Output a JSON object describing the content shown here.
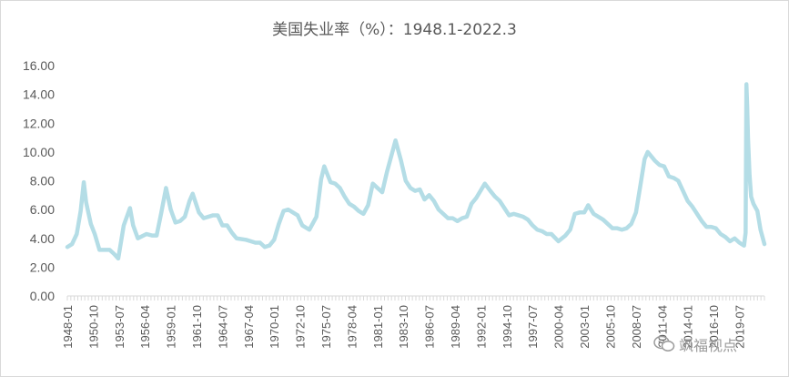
{
  "chart_data": {
    "type": "line",
    "title": "美国失业率（%）：1948.1-2022.3",
    "xlabel": "",
    "ylabel": "",
    "ylim": [
      0,
      16
    ],
    "yticks": [
      "0.00",
      "2.00",
      "4.00",
      "6.00",
      "8.00",
      "10.00",
      "12.00",
      "14.00",
      "16.00"
    ],
    "xticks": [
      "1948-01",
      "1950-10",
      "1953-07",
      "1956-04",
      "1959-01",
      "1961-10",
      "1964-07",
      "1967-04",
      "1970-01",
      "1972-10",
      "1975-07",
      "1978-04",
      "1981-01",
      "1983-10",
      "1986-07",
      "1989-04",
      "1992-01",
      "1994-10",
      "1997-07",
      "2000-04",
      "2003-01",
      "2005-10",
      "2008-07",
      "2011-04",
      "2014-01",
      "2016-10",
      "2019-07"
    ],
    "grid": false,
    "legend": "none",
    "line_color": "#b4dde6",
    "x_range": [
      "1948-01",
      "2022-03"
    ],
    "series": [
      {
        "points": [
          [
            "1948-01",
            3.4
          ],
          [
            "1948-07",
            3.6
          ],
          [
            "1949-01",
            4.3
          ],
          [
            "1949-06",
            5.9
          ],
          [
            "1949-10",
            7.9
          ],
          [
            "1950-01",
            6.5
          ],
          [
            "1950-07",
            5.0
          ],
          [
            "1950-12",
            4.3
          ],
          [
            "1951-06",
            3.2
          ],
          [
            "1952-01",
            3.2
          ],
          [
            "1952-07",
            3.2
          ],
          [
            "1953-01",
            2.9
          ],
          [
            "1953-06",
            2.6
          ],
          [
            "1954-01",
            4.9
          ],
          [
            "1954-09",
            6.1
          ],
          [
            "1955-01",
            4.9
          ],
          [
            "1955-07",
            4.0
          ],
          [
            "1956-06",
            4.3
          ],
          [
            "1957-01",
            4.2
          ],
          [
            "1957-07",
            4.2
          ],
          [
            "1958-01",
            5.8
          ],
          [
            "1958-07",
            7.5
          ],
          [
            "1959-01",
            6.0
          ],
          [
            "1959-07",
            5.1
          ],
          [
            "1960-01",
            5.2
          ],
          [
            "1960-07",
            5.5
          ],
          [
            "1961-01",
            6.6
          ],
          [
            "1961-05",
            7.1
          ],
          [
            "1962-01",
            5.8
          ],
          [
            "1962-07",
            5.4
          ],
          [
            "1963-07",
            5.6
          ],
          [
            "1964-01",
            5.6
          ],
          [
            "1964-07",
            4.9
          ],
          [
            "1965-01",
            4.9
          ],
          [
            "1965-07",
            4.4
          ],
          [
            "1966-01",
            4.0
          ],
          [
            "1967-01",
            3.9
          ],
          [
            "1967-07",
            3.8
          ],
          [
            "1968-01",
            3.7
          ],
          [
            "1968-07",
            3.7
          ],
          [
            "1969-01",
            3.4
          ],
          [
            "1969-07",
            3.5
          ],
          [
            "1970-01",
            3.9
          ],
          [
            "1970-07",
            5.0
          ],
          [
            "1971-01",
            5.9
          ],
          [
            "1971-07",
            6.0
          ],
          [
            "1972-01",
            5.8
          ],
          [
            "1972-07",
            5.6
          ],
          [
            "1973-01",
            4.9
          ],
          [
            "1973-10",
            4.6
          ],
          [
            "1974-07",
            5.5
          ],
          [
            "1975-01",
            8.1
          ],
          [
            "1975-05",
            9.0
          ],
          [
            "1976-01",
            7.9
          ],
          [
            "1976-07",
            7.8
          ],
          [
            "1977-01",
            7.5
          ],
          [
            "1977-07",
            6.9
          ],
          [
            "1978-01",
            6.4
          ],
          [
            "1978-07",
            6.2
          ],
          [
            "1979-01",
            5.9
          ],
          [
            "1979-07",
            5.7
          ],
          [
            "1980-01",
            6.3
          ],
          [
            "1980-07",
            7.8
          ],
          [
            "1981-01",
            7.5
          ],
          [
            "1981-07",
            7.2
          ],
          [
            "1982-01",
            8.6
          ],
          [
            "1982-07",
            9.8
          ],
          [
            "1982-12",
            10.8
          ],
          [
            "1983-07",
            9.4
          ],
          [
            "1984-01",
            8.0
          ],
          [
            "1984-07",
            7.5
          ],
          [
            "1985-01",
            7.3
          ],
          [
            "1985-07",
            7.4
          ],
          [
            "1986-01",
            6.7
          ],
          [
            "1986-07",
            7.0
          ],
          [
            "1987-01",
            6.6
          ],
          [
            "1987-07",
            6.0
          ],
          [
            "1988-01",
            5.7
          ],
          [
            "1988-07",
            5.4
          ],
          [
            "1989-01",
            5.4
          ],
          [
            "1989-07",
            5.2
          ],
          [
            "1990-01",
            5.4
          ],
          [
            "1990-07",
            5.5
          ],
          [
            "1991-01",
            6.4
          ],
          [
            "1991-07",
            6.8
          ],
          [
            "1992-06",
            7.8
          ],
          [
            "1993-01",
            7.3
          ],
          [
            "1993-07",
            6.9
          ],
          [
            "1994-01",
            6.6
          ],
          [
            "1994-07",
            6.1
          ],
          [
            "1995-01",
            5.6
          ],
          [
            "1995-07",
            5.7
          ],
          [
            "1996-01",
            5.6
          ],
          [
            "1996-07",
            5.5
          ],
          [
            "1997-01",
            5.3
          ],
          [
            "1997-07",
            4.9
          ],
          [
            "1998-01",
            4.6
          ],
          [
            "1998-07",
            4.5
          ],
          [
            "1999-01",
            4.3
          ],
          [
            "1999-07",
            4.3
          ],
          [
            "2000-04",
            3.8
          ],
          [
            "2001-01",
            4.2
          ],
          [
            "2001-07",
            4.6
          ],
          [
            "2002-01",
            5.7
          ],
          [
            "2002-07",
            5.8
          ],
          [
            "2003-01",
            5.8
          ],
          [
            "2003-06",
            6.3
          ],
          [
            "2004-01",
            5.7
          ],
          [
            "2004-07",
            5.5
          ],
          [
            "2005-01",
            5.3
          ],
          [
            "2005-07",
            5.0
          ],
          [
            "2006-01",
            4.7
          ],
          [
            "2006-07",
            4.7
          ],
          [
            "2007-01",
            4.6
          ],
          [
            "2007-07",
            4.7
          ],
          [
            "2008-01",
            5.0
          ],
          [
            "2008-07",
            5.8
          ],
          [
            "2009-01",
            7.8
          ],
          [
            "2009-06",
            9.5
          ],
          [
            "2009-10",
            10.0
          ],
          [
            "2010-01",
            9.8
          ],
          [
            "2010-07",
            9.4
          ],
          [
            "2011-01",
            9.1
          ],
          [
            "2011-07",
            9.0
          ],
          [
            "2012-01",
            8.3
          ],
          [
            "2012-07",
            8.2
          ],
          [
            "2013-01",
            8.0
          ],
          [
            "2013-07",
            7.3
          ],
          [
            "2014-01",
            6.6
          ],
          [
            "2014-07",
            6.2
          ],
          [
            "2015-01",
            5.7
          ],
          [
            "2015-07",
            5.2
          ],
          [
            "2016-01",
            4.8
          ],
          [
            "2016-07",
            4.8
          ],
          [
            "2017-01",
            4.7
          ],
          [
            "2017-07",
            4.3
          ],
          [
            "2018-01",
            4.1
          ],
          [
            "2018-07",
            3.8
          ],
          [
            "2019-01",
            4.0
          ],
          [
            "2019-07",
            3.7
          ],
          [
            "2020-01",
            3.5
          ],
          [
            "2020-03",
            4.4
          ],
          [
            "2020-04",
            14.7
          ],
          [
            "2020-05",
            13.2
          ],
          [
            "2020-06",
            11.0
          ],
          [
            "2020-08",
            8.4
          ],
          [
            "2020-10",
            6.9
          ],
          [
            "2021-01",
            6.4
          ],
          [
            "2021-06",
            5.9
          ],
          [
            "2021-10",
            4.6
          ],
          [
            "2022-01",
            4.0
          ],
          [
            "2022-03",
            3.6
          ]
        ]
      }
    ]
  },
  "watermark": {
    "text": "飒福视点"
  }
}
